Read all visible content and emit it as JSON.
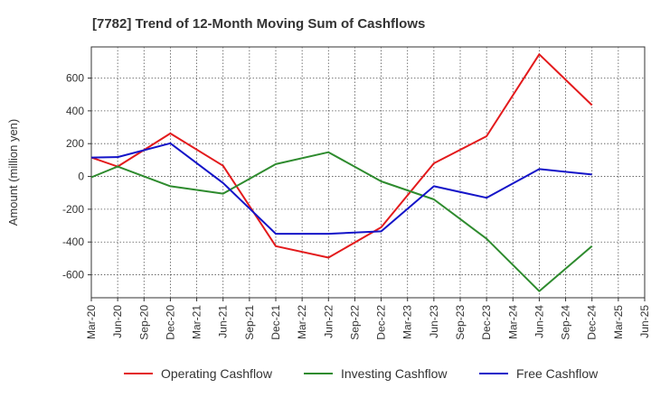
{
  "chart_data": {
    "type": "line",
    "title": "[7782]  Trend of 12-Month Moving Sum of Cashflows",
    "ylabel": "Amount (million yen)",
    "xlabel": "",
    "ylim": [
      -740,
      790
    ],
    "yticks": [
      -600,
      -400,
      -200,
      0,
      200,
      400,
      600
    ],
    "categories": [
      "Mar-20",
      "Jun-20",
      "Sep-20",
      "Dec-20",
      "Mar-21",
      "Jun-21",
      "Sep-21",
      "Dec-21",
      "Mar-22",
      "Jun-22",
      "Sep-22",
      "Dec-22",
      "Mar-23",
      "Jun-23",
      "Sep-23",
      "Dec-23",
      "Mar-24",
      "Jun-24",
      "Sep-24",
      "Dec-24",
      "Mar-25",
      "Jun-25"
    ],
    "grid": true,
    "legend_position": "bottom",
    "series": [
      {
        "name": "Operating Cashflow",
        "color": "#e31a1c",
        "values": [
          115,
          60,
          null,
          262,
          null,
          65,
          null,
          -425,
          null,
          -495,
          null,
          -310,
          null,
          80,
          null,
          245,
          null,
          745,
          null,
          435,
          null,
          null
        ]
      },
      {
        "name": "Investing Cashflow",
        "color": "#2e8b2e",
        "values": [
          -5,
          60,
          null,
          -60,
          null,
          -105,
          null,
          75,
          null,
          148,
          null,
          -30,
          null,
          -140,
          null,
          -380,
          null,
          -700,
          null,
          -425,
          null,
          null
        ]
      },
      {
        "name": "Free Cashflow",
        "color": "#1414c8",
        "values": [
          115,
          118,
          null,
          202,
          null,
          -40,
          null,
          -350,
          null,
          -350,
          null,
          -335,
          null,
          -60,
          null,
          -130,
          null,
          45,
          null,
          12,
          null,
          null
        ]
      }
    ]
  }
}
